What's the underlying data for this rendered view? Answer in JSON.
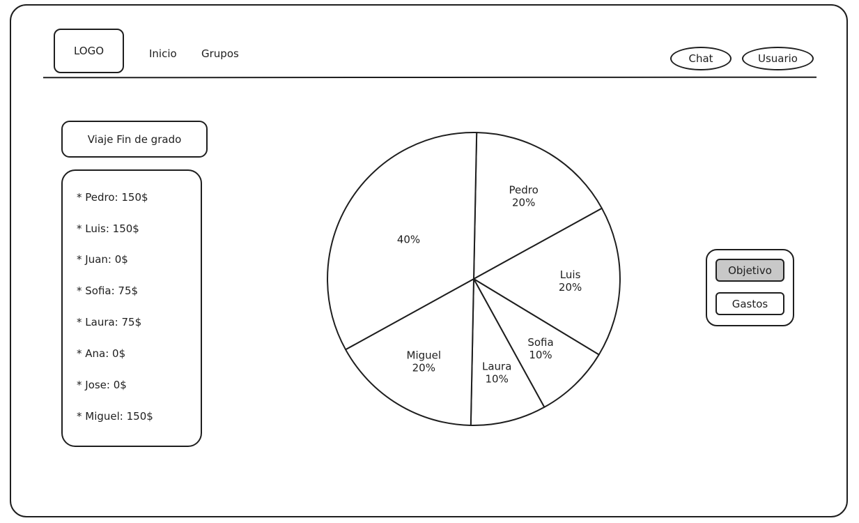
{
  "header": {
    "logo": "LOGO",
    "nav": [
      "Inicio",
      "Grupos"
    ],
    "chat": "Chat",
    "user": "Usuario"
  },
  "group": {
    "title": "Viaje Fin de grado",
    "members": [
      "* Pedro: 150$",
      "* Luis: 150$",
      "* Juan: 0$",
      "* Sofia: 75$",
      "* Laura: 75$",
      "* Ana: 0$",
      "* Jose: 0$",
      "* Miguel: 150$"
    ]
  },
  "chart_data": {
    "type": "pie",
    "slices": [
      {
        "name": "Pedro",
        "label": "20%",
        "value": 20
      },
      {
        "name": "Luis",
        "label": "20%",
        "value": 20
      },
      {
        "name": "Sofia",
        "label": "10%",
        "value": 10
      },
      {
        "name": "Laura",
        "label": "10%",
        "value": 10
      },
      {
        "name": "Miguel",
        "label": "20%",
        "value": 20
      },
      {
        "name": "",
        "label": "40%",
        "value": 40
      }
    ]
  },
  "side_panel": {
    "objective": "Objetivo",
    "expenses": "Gastos",
    "active_color": "#c8c8c8"
  }
}
